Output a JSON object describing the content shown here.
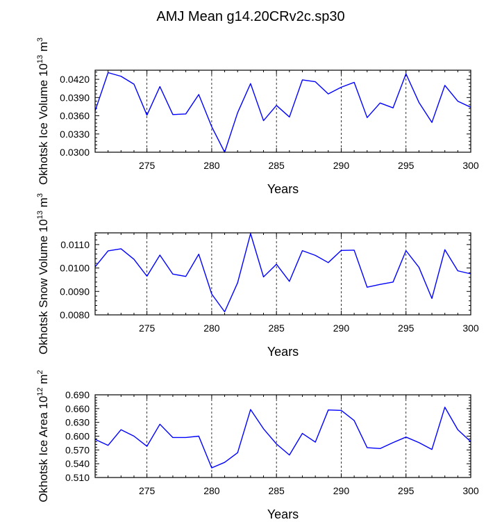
{
  "title": "AMJ Mean g14.20CRv2c.sp30",
  "chart_data": [
    {
      "type": "line",
      "ylabel_main": "Okhotsk Ice Volume 10",
      "ylabel_exp": "13",
      "ylabel_unit": " m",
      "ylabel_unit_exp": "3",
      "xlabel": "Years",
      "xlim": [
        271,
        300
      ],
      "ylim": [
        0.03,
        0.0435
      ],
      "xticks": [
        275,
        280,
        285,
        290,
        295,
        300
      ],
      "xtick_labels": [
        "275",
        "280",
        "285",
        "290",
        "295",
        "300"
      ],
      "yticks": [
        0.03,
        0.033,
        0.036,
        0.039,
        0.042
      ],
      "ytick_labels": [
        "0.0300",
        "0.0330",
        "0.0360",
        "0.0390",
        "0.0420"
      ],
      "grid": "vertical dashed at labeled x ticks",
      "color": "#0000ff",
      "x": [
        271,
        272,
        273,
        274,
        275,
        276,
        277,
        278,
        279,
        280,
        281,
        282,
        283,
        284,
        285,
        286,
        287,
        288,
        289,
        290,
        291,
        292,
        293,
        294,
        295,
        296,
        297,
        298,
        299,
        300
      ],
      "y": [
        0.0368,
        0.0431,
        0.0425,
        0.0412,
        0.0361,
        0.0408,
        0.0362,
        0.0363,
        0.0395,
        0.0342,
        0.03,
        0.0365,
        0.0413,
        0.0352,
        0.0377,
        0.0358,
        0.0419,
        0.0416,
        0.0396,
        0.0407,
        0.0415,
        0.0357,
        0.0381,
        0.0373,
        0.0429,
        0.0382,
        0.0349,
        0.041,
        0.0384,
        0.0374
      ]
    },
    {
      "type": "line",
      "ylabel_main": "Okhotsk Snow Volume 10",
      "ylabel_exp": "13",
      "ylabel_unit": " m",
      "ylabel_unit_exp": "3",
      "xlabel": "Years",
      "xlim": [
        271,
        300
      ],
      "ylim": [
        0.008,
        0.0115
      ],
      "xticks": [
        275,
        280,
        285,
        290,
        295,
        300
      ],
      "xtick_labels": [
        "275",
        "280",
        "285",
        "290",
        "295",
        "300"
      ],
      "yticks": [
        0.008,
        0.009,
        0.01,
        0.011
      ],
      "ytick_labels": [
        "0.0080",
        "0.0090",
        "0.0100",
        "0.0110"
      ],
      "grid": "vertical dashed at labeled x ticks",
      "color": "#0000ff",
      "x": [
        271,
        272,
        273,
        274,
        275,
        276,
        277,
        278,
        279,
        280,
        281,
        282,
        283,
        284,
        285,
        286,
        287,
        288,
        289,
        290,
        291,
        292,
        293,
        294,
        295,
        296,
        297,
        298,
        299,
        300
      ],
      "y": [
        0.01005,
        0.01073,
        0.01082,
        0.01037,
        0.00965,
        0.01055,
        0.00974,
        0.00964,
        0.01059,
        0.00889,
        0.00813,
        0.00937,
        0.01147,
        0.00962,
        0.01016,
        0.00943,
        0.01074,
        0.01054,
        0.01023,
        0.01075,
        0.01076,
        0.00918,
        0.0093,
        0.0094,
        0.01074,
        0.01003,
        0.0087,
        0.01078,
        0.00988,
        0.00975
      ]
    },
    {
      "type": "line",
      "ylabel_main": "Okhotsk Ice Area 10",
      "ylabel_exp": "12",
      "ylabel_unit": " m",
      "ylabel_unit_exp": "2",
      "xlabel": "Years",
      "xlim": [
        271,
        300
      ],
      "ylim": [
        0.51,
        0.69
      ],
      "xticks": [
        275,
        280,
        285,
        290,
        295,
        300
      ],
      "xtick_labels": [
        "275",
        "280",
        "285",
        "290",
        "295",
        "300"
      ],
      "yticks": [
        0.51,
        0.54,
        0.57,
        0.6,
        0.63,
        0.66,
        0.69
      ],
      "ytick_labels": [
        "0.510",
        "0.540",
        "0.570",
        "0.600",
        "0.630",
        "0.660",
        "0.690"
      ],
      "grid": "vertical dashed at labeled x ticks",
      "color": "#0000ff",
      "x": [
        271,
        272,
        273,
        274,
        275,
        276,
        277,
        278,
        279,
        280,
        281,
        282,
        283,
        284,
        285,
        286,
        287,
        288,
        289,
        290,
        291,
        292,
        293,
        294,
        295,
        296,
        297,
        298,
        299,
        300
      ],
      "y": [
        0.593,
        0.58,
        0.614,
        0.6,
        0.578,
        0.626,
        0.597,
        0.597,
        0.6,
        0.531,
        0.543,
        0.564,
        0.658,
        0.616,
        0.583,
        0.559,
        0.606,
        0.587,
        0.657,
        0.656,
        0.634,
        0.575,
        0.573,
        0.586,
        0.598,
        0.586,
        0.571,
        0.663,
        0.614,
        0.588
      ]
    }
  ]
}
